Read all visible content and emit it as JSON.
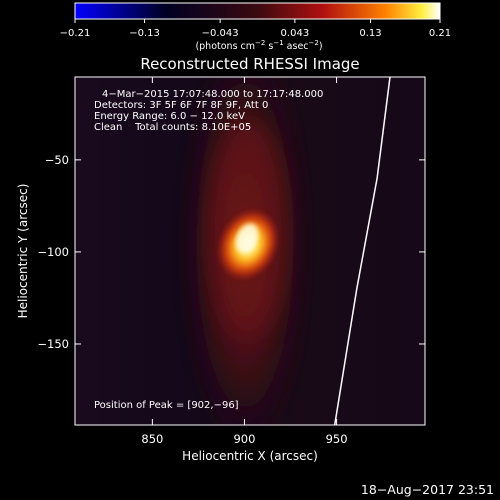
{
  "chart_data": {
    "type": "heatmap",
    "title": "Reconstructed RHESSI Image",
    "xlabel": "Heliocentric X (arcsec)",
    "ylabel": "Heliocentric Y (arcsec)",
    "xlim": [
      808,
      998
    ],
    "ylim": [
      -194,
      -5
    ],
    "x_ticks": [
      850,
      900,
      950
    ],
    "y_ticks": [
      -50,
      -100,
      -150
    ],
    "colorbar": {
      "range": [
        -0.21,
        0.21
      ],
      "tick_values": [
        -0.21,
        -0.13,
        -0.043,
        0.043,
        0.13,
        0.21
      ],
      "tick_labels": [
        "−0.21",
        "−0.13",
        "−0.043",
        "0.043",
        "0.13",
        "0.21"
      ],
      "unit_main": "(photons cm",
      "unit_sup1": "−2",
      "unit_mid": " s",
      "unit_sup2": "−1",
      "unit_mid2": " asec",
      "unit_sup3": "−2",
      "unit_end": ")",
      "colormap": [
        "#0000ff",
        "#000000",
        "#ff0000",
        "#ffff00",
        "#ffffff"
      ]
    },
    "annotations": {
      "time_range": "4−Mar−2015 17:07:48.000 to 17:17:48.000",
      "detectors": "Detectors: 3F 5F 6F 7F 8F 9F, Att 0",
      "energy": "Energy Range: 6.0 − 12.0 keV",
      "clean": "Clean    Total counts: 8.10E+05",
      "peak": "Position of Peak = [902,−96]"
    },
    "peak": {
      "x": 902,
      "y": -96
    },
    "limb_line": [
      {
        "x": 979,
        "y": -5
      },
      {
        "x": 972,
        "y": -60
      },
      {
        "x": 961,
        "y": -120
      },
      {
        "x": 949,
        "y": -194
      }
    ]
  },
  "footer": {
    "timestamp": "18−Aug−2017 23:51"
  }
}
